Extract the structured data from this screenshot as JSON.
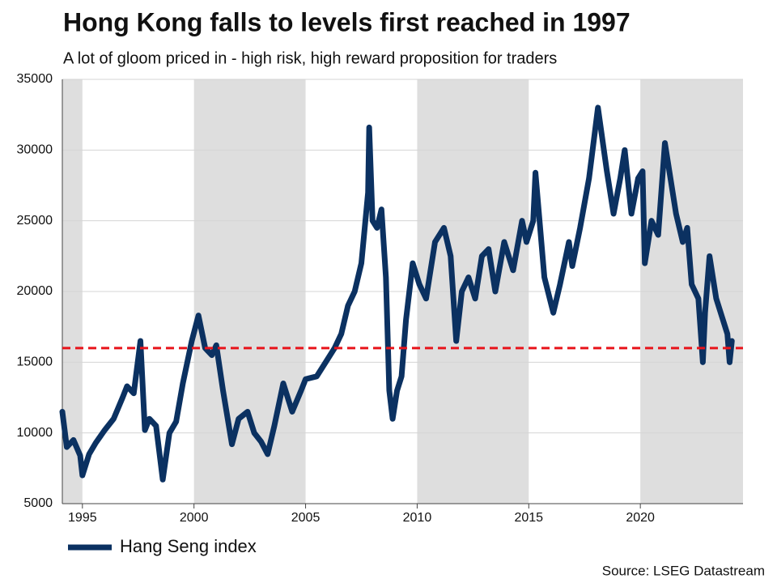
{
  "chart_data": {
    "type": "line",
    "title": "Hong Kong falls to levels first reached in 1997",
    "subtitle": "A lot of gloom priced in - high risk, high reward proposition for traders",
    "source": "Source: LSEG Datastream",
    "legend": "bottom-left",
    "grid": true,
    "alternate_shading": true,
    "reference_line": {
      "value": 16000,
      "color": "#e8141b"
    },
    "xlim": [
      1994.1,
      2024.6
    ],
    "xticks": [
      1995,
      2000,
      2005,
      2010,
      2015,
      2020
    ],
    "ylim": [
      5000,
      35000
    ],
    "yticks": [
      5000,
      10000,
      15000,
      20000,
      25000,
      30000,
      35000
    ],
    "x": [
      1994.1,
      1994.3,
      1994.6,
      1994.9,
      1995.0,
      1995.3,
      1995.6,
      1996.0,
      1996.4,
      1996.8,
      1997.0,
      1997.3,
      1997.6,
      1997.8,
      1998.0,
      1998.3,
      1998.6,
      1998.9,
      1999.2,
      1999.5,
      1999.9,
      2000.2,
      2000.5,
      2000.8,
      2001.0,
      2001.3,
      2001.7,
      2002.0,
      2002.4,
      2002.7,
      2003.0,
      2003.3,
      2003.6,
      2004.0,
      2004.4,
      2004.8,
      2005.0,
      2005.5,
      2005.9,
      2006.3,
      2006.6,
      2006.9,
      2007.2,
      2007.5,
      2007.8,
      2007.85,
      2008.0,
      2008.2,
      2008.4,
      2008.6,
      2008.75,
      2008.9,
      2009.1,
      2009.3,
      2009.5,
      2009.8,
      2010.1,
      2010.4,
      2010.8,
      2011.0,
      2011.2,
      2011.5,
      2011.75,
      2012.0,
      2012.3,
      2012.6,
      2012.9,
      2013.2,
      2013.5,
      2013.9,
      2014.3,
      2014.7,
      2014.9,
      2015.2,
      2015.3,
      2015.7,
      2016.1,
      2016.4,
      2016.8,
      2016.95,
      2017.3,
      2017.7,
      2018.1,
      2018.5,
      2018.8,
      2019.1,
      2019.3,
      2019.6,
      2019.9,
      2020.1,
      2020.2,
      2020.5,
      2020.8,
      2021.1,
      2021.3,
      2021.6,
      2021.9,
      2022.1,
      2022.3,
      2022.6,
      2022.8,
      2022.9,
      2023.1,
      2023.4,
      2023.7,
      2023.9,
      2024.0,
      2024.1
    ],
    "series": [
      {
        "name": "Hang Seng index",
        "color": "#0b3161",
        "values": [
          11500,
          9000,
          9500,
          8400,
          7000,
          8500,
          9300,
          10200,
          11000,
          12500,
          13300,
          12800,
          16500,
          10200,
          11000,
          10500,
          6700,
          10000,
          10800,
          13500,
          16500,
          18300,
          16000,
          15500,
          16200,
          13000,
          9200,
          11000,
          11500,
          10000,
          9400,
          8500,
          10500,
          13500,
          11500,
          13000,
          13800,
          14000,
          15000,
          16000,
          17000,
          19000,
          20000,
          22000,
          27000,
          31600,
          25000,
          24500,
          25800,
          21000,
          13000,
          11000,
          13000,
          14000,
          18000,
          22000,
          20500,
          19500,
          23500,
          24000,
          24500,
          22500,
          16500,
          20000,
          21000,
          19500,
          22500,
          23000,
          20000,
          23500,
          21500,
          25000,
          23500,
          25000,
          28400,
          21000,
          18500,
          20500,
          23500,
          21800,
          24500,
          28000,
          33000,
          28500,
          25500,
          28000,
          30000,
          25500,
          28000,
          28500,
          22000,
          25000,
          24000,
          30500,
          28500,
          25500,
          23500,
          24500,
          20500,
          19500,
          15000,
          18500,
          22500,
          19500,
          18000,
          17000,
          15000,
          16500
        ]
      }
    ]
  }
}
